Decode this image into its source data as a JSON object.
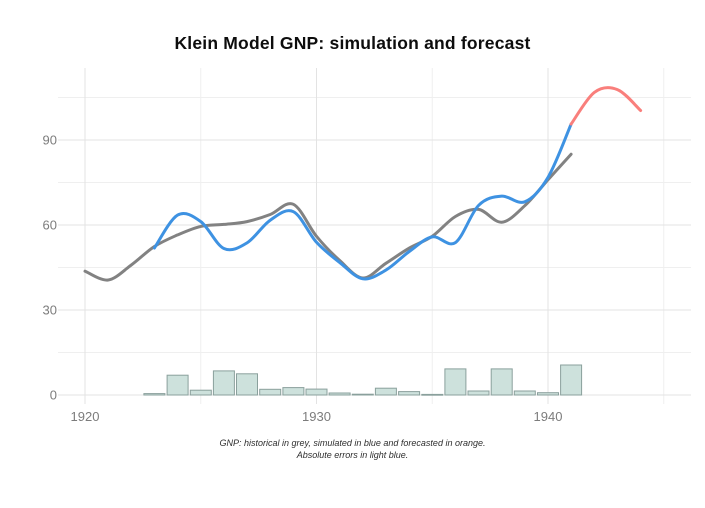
{
  "chart_data": {
    "type": "line",
    "title": "Klein Model GNP: simulation and forecast",
    "caption_line1": "GNP: historical in grey, simulated in blue and forecasted in orange.",
    "caption_line2": "Absolute errors in light blue.",
    "xlabel": "",
    "ylabel": "",
    "xlim": [
      1918.8,
      1946.2
    ],
    "ylim": [
      -3.2,
      115.4
    ],
    "x_major_ticks": [
      1920,
      1930,
      1940
    ],
    "x_minor_ticks": [
      1925,
      1935,
      1945
    ],
    "y_major_ticks": [
      0,
      30,
      60,
      90
    ],
    "y_minor_ticks": [
      15,
      45,
      75,
      105
    ],
    "grid": "major and minor, light grey on white panel",
    "legend_position": "none",
    "colors": {
      "historical": "#828282",
      "simulated": "#3e92e2",
      "forecast": "#f97f7c",
      "error_bar_fill": "#cde1dc",
      "error_bar_border": "#8aa09c",
      "grid_major": "#e3e3e3",
      "grid_minor": "#efefef",
      "tick_label": "#7c7c7c"
    },
    "series": [
      {
        "name": "historical",
        "type": "line",
        "x": [
          1920,
          1921,
          1922,
          1923,
          1924,
          1925,
          1926,
          1927,
          1928,
          1929,
          1930,
          1931,
          1932,
          1933,
          1934,
          1935,
          1936,
          1937,
          1938,
          1939,
          1940,
          1941
        ],
        "y": [
          43.7,
          40.6,
          45.9,
          52.4,
          56.5,
          59.5,
          60.2,
          61.2,
          63.7,
          67.3,
          56.0,
          47.5,
          41.3,
          46.5,
          51.8,
          56.0,
          63.0,
          65.5,
          61.0,
          66.8,
          76.0,
          85.0
        ]
      },
      {
        "name": "simulated",
        "type": "line",
        "x": [
          1923,
          1924,
          1925,
          1926,
          1927,
          1928,
          1929,
          1930,
          1931,
          1932,
          1933,
          1934,
          1935,
          1936,
          1937,
          1938,
          1939,
          1940,
          1941
        ],
        "y": [
          51.9,
          63.5,
          61.2,
          51.7,
          53.7,
          61.7,
          64.7,
          53.9,
          46.8,
          41.0,
          44.1,
          50.6,
          55.8,
          53.8,
          66.9,
          70.2,
          68.2,
          76.8,
          95.6
        ]
      },
      {
        "name": "forecast",
        "type": "line",
        "x": [
          1941,
          1942,
          1943,
          1944
        ],
        "y": [
          95.6,
          106.8,
          107.8,
          100.4
        ]
      },
      {
        "name": "absolute_error",
        "type": "bar",
        "x": [
          1923,
          1924,
          1925,
          1926,
          1927,
          1928,
          1929,
          1930,
          1931,
          1932,
          1933,
          1934,
          1935,
          1936,
          1937,
          1938,
          1939,
          1940,
          1941
        ],
        "y": [
          0.5,
          7.0,
          1.7,
          8.5,
          7.5,
          2.0,
          2.6,
          2.1,
          0.7,
          0.3,
          2.4,
          1.2,
          0.2,
          9.2,
          1.4,
          9.2,
          1.4,
          0.8,
          10.6
        ]
      }
    ]
  }
}
